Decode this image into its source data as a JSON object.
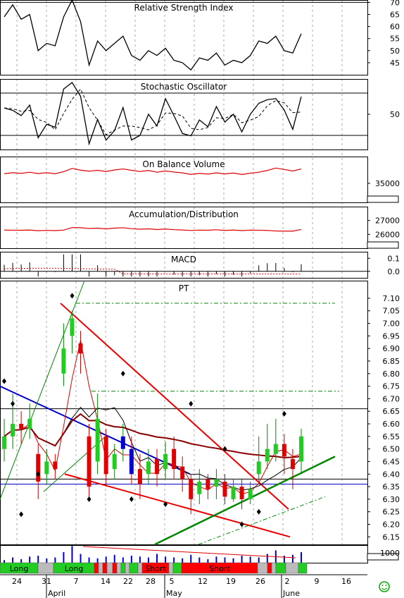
{
  "chart_data": {
    "type": "line",
    "panels": [
      {
        "id": "rsi",
        "title": "Relative Strength Index",
        "yticks": [
          70,
          65,
          60,
          55,
          50,
          45
        ],
        "ylim": [
          40,
          71
        ],
        "hlines": [
          70,
          30
        ]
      },
      {
        "id": "stoch",
        "title": "Stochastic Oscillator",
        "yticks": [
          50
        ],
        "ylim": [
          0,
          100
        ],
        "hlines": [
          80,
          20
        ]
      },
      {
        "id": "obv",
        "title": "On Balance Volume",
        "yticks": [
          35000
        ],
        "ylim": [
          30000,
          42000
        ]
      },
      {
        "id": "ad",
        "title": "Accumulation/Distribution",
        "yticks": [
          27000,
          26000
        ],
        "ylim": [
          25000,
          28000
        ]
      },
      {
        "id": "macd",
        "title": "MACD",
        "yticks": [
          0.1,
          0.0
        ],
        "ylim": [
          -0.05,
          0.15
        ]
      },
      {
        "id": "price",
        "title": "PT",
        "yticks": [
          7.1,
          7.05,
          7.0,
          6.95,
          6.9,
          6.85,
          6.8,
          6.75,
          6.7,
          6.65,
          6.6,
          6.55,
          6.5,
          6.45,
          6.4,
          6.35,
          6.3,
          6.25,
          6.2,
          6.15
        ],
        "ylim": [
          6.12,
          7.17
        ]
      },
      {
        "id": "volume",
        "title": "",
        "yticks": [
          1000
        ],
        "ylim": [
          0,
          1
        ]
      }
    ],
    "x_labels": [
      "24",
      "31",
      "7",
      "14",
      "22",
      "28",
      "5",
      "12",
      "19",
      "26",
      "2",
      "9",
      "16"
    ],
    "month_labels": [
      "April",
      "May",
      "June"
    ],
    "signals": [
      {
        "label": "Long",
        "state": "long"
      },
      {
        "label": "Long",
        "state": "long"
      },
      {
        "label": "Short",
        "state": "short"
      },
      {
        "label": "Short",
        "state": "short"
      }
    ],
    "series": [
      {
        "name": "RSI",
        "values": [
          64,
          69,
          63,
          65,
          50,
          53,
          52,
          64,
          71,
          62,
          44,
          54,
          50,
          53,
          56,
          48,
          46,
          50,
          48,
          51,
          46,
          45,
          42,
          47,
          46,
          49,
          44,
          46,
          45,
          48,
          54,
          53,
          56,
          50,
          49,
          57
        ]
      },
      {
        "name": "Close",
        "values": [
          6.55,
          6.6,
          6.58,
          6.62,
          6.37,
          6.45,
          6.42,
          6.9,
          7.02,
          6.88,
          6.35,
          6.62,
          6.4,
          6.48,
          6.55,
          6.4,
          6.36,
          6.45,
          6.4,
          6.48,
          6.42,
          6.38,
          6.3,
          6.37,
          6.34,
          6.38,
          6.31,
          6.35,
          6.3,
          6.34,
          6.45,
          6.5,
          6.52,
          6.47,
          6.42,
          6.55
        ]
      },
      {
        "name": "Open",
        "values": [
          6.5,
          6.55,
          6.6,
          6.58,
          6.48,
          6.4,
          6.45,
          6.8,
          6.95,
          6.92,
          6.55,
          6.45,
          6.55,
          6.42,
          6.5,
          6.5,
          6.42,
          6.4,
          6.46,
          6.42,
          6.5,
          6.43,
          6.38,
          6.32,
          6.38,
          6.35,
          6.37,
          6.3,
          6.35,
          6.3,
          6.4,
          6.45,
          6.48,
          6.52,
          6.46,
          6.45
        ]
      },
      {
        "name": "High",
        "values": [
          6.62,
          6.72,
          6.65,
          6.68,
          6.52,
          6.5,
          6.48,
          7.0,
          7.05,
          6.97,
          6.6,
          6.72,
          6.58,
          6.52,
          6.6,
          6.55,
          6.48,
          6.5,
          6.5,
          6.53,
          6.55,
          6.47,
          6.4,
          6.42,
          6.4,
          6.42,
          6.4,
          6.38,
          6.38,
          6.37,
          6.55,
          6.6,
          6.62,
          6.56,
          6.5,
          6.58
        ]
      },
      {
        "name": "Low",
        "values": [
          6.45,
          6.5,
          6.52,
          6.54,
          6.3,
          6.36,
          6.38,
          6.75,
          6.88,
          6.8,
          6.3,
          6.4,
          6.35,
          6.38,
          6.45,
          6.36,
          6.3,
          6.36,
          6.35,
          6.38,
          6.38,
          6.33,
          6.24,
          6.28,
          6.3,
          6.3,
          6.28,
          6.29,
          6.26,
          6.28,
          6.36,
          6.42,
          6.45,
          6.4,
          6.34,
          6.4
        ]
      },
      {
        "name": "Volume",
        "values": [
          0.15,
          0.3,
          0.2,
          0.35,
          0.4,
          0.25,
          0.3,
          0.6,
          0.95,
          0.5,
          0.3,
          0.25,
          0.35,
          0.45,
          0.3,
          0.4,
          0.35,
          0.3,
          0.5,
          0.35,
          0.3,
          0.25,
          0.45,
          0.3,
          0.2,
          0.35,
          0.3,
          0.25,
          0.4,
          0.35,
          0.3,
          0.5,
          0.7,
          0.4,
          0.45,
          0.6
        ]
      }
    ]
  }
}
